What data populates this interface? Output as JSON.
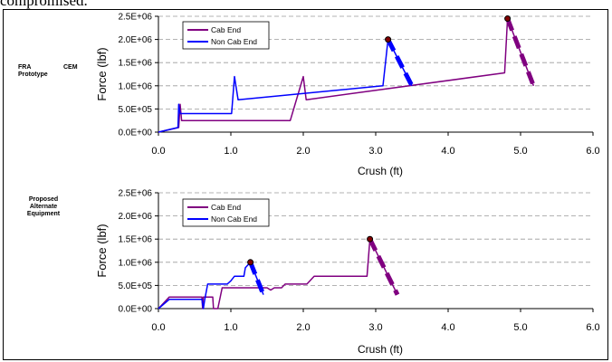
{
  "caption": "compromised.",
  "row_labels": {
    "top_left": "FRA",
    "top_right": "CEM",
    "top_second": "Prototype",
    "bottom_lines": [
      "Proposed",
      "Alternate",
      "Equipment"
    ]
  },
  "colors": {
    "cab_end": "#800080",
    "non_cab_end": "#0000ff",
    "marker": "#800000"
  },
  "chart_data": [
    {
      "type": "line",
      "xlabel": "Crush (ft)",
      "ylabel": "Force (lbf)",
      "xlim": [
        0,
        6
      ],
      "ylim": [
        0,
        2500000
      ],
      "x_ticks": [
        "0.0",
        "1.0",
        "2.0",
        "3.0",
        "4.0",
        "5.0",
        "6.0"
      ],
      "y_ticks": [
        "0.0E+00",
        "5.0E+05",
        "1.0E+06",
        "1.5E+06",
        "2.0E+06",
        "2.5E+06"
      ],
      "grid": "horizontal dashed",
      "legend": "top-left",
      "series": [
        {
          "name": "Cab End",
          "color": "#800080",
          "points": [
            [
              0,
              0
            ],
            [
              0.28,
              100000
            ],
            [
              0.3,
              600000
            ],
            [
              0.32,
              250000
            ],
            [
              1.82,
              250000
            ],
            [
              2.0,
              1200000
            ],
            [
              2.04,
              700000
            ],
            [
              4.78,
              1280000
            ],
            [
              4.82,
              2450000
            ],
            [
              5.18,
              1000000
            ]
          ]
        },
        {
          "name": "Non Cab End",
          "color": "#0000ff",
          "points": [
            [
              0,
              0
            ],
            [
              0.27,
              100000
            ],
            [
              0.28,
              600000
            ],
            [
              0.3,
              400000
            ],
            [
              1.01,
              400000
            ],
            [
              1.05,
              1200000
            ],
            [
              1.1,
              700000
            ],
            [
              3.1,
              1000000
            ],
            [
              3.17,
              2000000
            ],
            [
              3.5,
              1000000
            ]
          ]
        }
      ],
      "markers": [
        [
          4.82,
          2450000
        ],
        [
          3.17,
          2000000
        ]
      ],
      "dashed_segments": [
        {
          "series": "Cab End",
          "from": [
            4.82,
            2450000
          ],
          "to": [
            5.18,
            1000000
          ]
        },
        {
          "series": "Non Cab End",
          "from": [
            3.17,
            2000000
          ],
          "to": [
            3.5,
            1000000
          ]
        }
      ]
    },
    {
      "type": "line",
      "xlabel": "Crush (ft)",
      "ylabel": "Force (lbf)",
      "xlim": [
        0,
        6
      ],
      "ylim": [
        0,
        2500000
      ],
      "x_ticks": [
        "0.0",
        "1.0",
        "2.0",
        "3.0",
        "4.0",
        "5.0",
        "6.0"
      ],
      "y_ticks": [
        "0.0E+00",
        "5.0E+05",
        "1.0E+06",
        "1.5E+06",
        "2.0E+06",
        "2.5E+06"
      ],
      "grid": "horizontal dashed",
      "legend": "top-left",
      "series": [
        {
          "name": "Cab End",
          "color": "#800080",
          "points": [
            [
              0,
              0
            ],
            [
              0.15,
              250000
            ],
            [
              0.6,
              250000
            ],
            [
              0.61,
              0
            ],
            [
              0.62,
              250000
            ],
            [
              0.75,
              250000
            ],
            [
              0.76,
              0
            ],
            [
              0.82,
              0
            ],
            [
              0.88,
              450000
            ],
            [
              1.5,
              450000
            ],
            [
              1.55,
              400000
            ],
            [
              1.6,
              450000
            ],
            [
              1.7,
              450000
            ],
            [
              1.75,
              530000
            ],
            [
              2.05,
              530000
            ],
            [
              2.15,
              700000
            ],
            [
              2.88,
              700000
            ],
            [
              2.92,
              1500000
            ],
            [
              3.3,
              300000
            ]
          ]
        },
        {
          "name": "Non Cab End",
          "color": "#0000ff",
          "points": [
            [
              0,
              0
            ],
            [
              0.15,
              200000
            ],
            [
              0.6,
              200000
            ],
            [
              0.62,
              0
            ],
            [
              0.64,
              200000
            ],
            [
              0.68,
              530000
            ],
            [
              0.95,
              530000
            ],
            [
              1.0,
              600000
            ],
            [
              1.05,
              700000
            ],
            [
              1.18,
              700000
            ],
            [
              1.2,
              880000
            ],
            [
              1.27,
              1000000
            ],
            [
              1.45,
              300000
            ]
          ]
        }
      ],
      "markers": [
        [
          2.92,
          1500000
        ],
        [
          1.27,
          1000000
        ]
      ],
      "dashed_segments": [
        {
          "series": "Cab End",
          "from": [
            2.92,
            1500000
          ],
          "to": [
            3.3,
            300000
          ]
        },
        {
          "series": "Non Cab End",
          "from": [
            1.27,
            1000000
          ],
          "to": [
            1.45,
            300000
          ]
        }
      ]
    }
  ]
}
